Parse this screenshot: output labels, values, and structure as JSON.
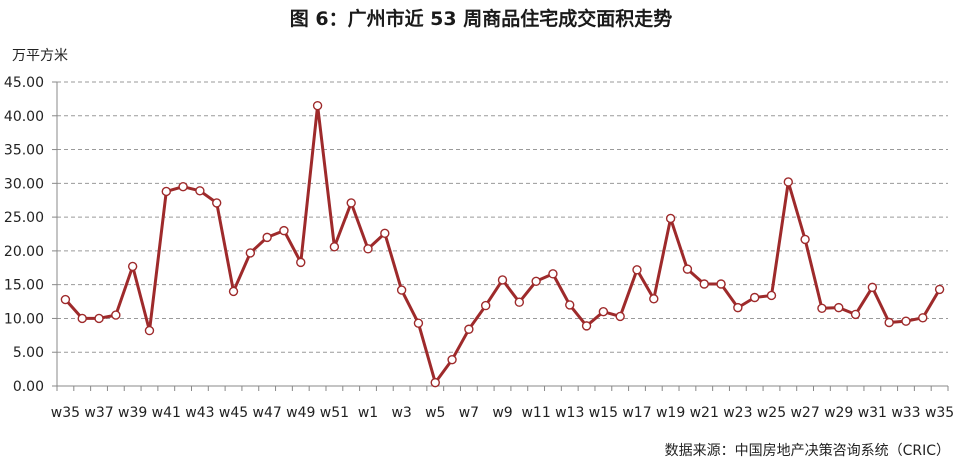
{
  "chart_data": {
    "type": "line",
    "title": "图 6：广州市近 53 周商品住宅成交面积走势",
    "ylabel": "万平方米",
    "xlabel": "",
    "source": "数据来源：中国房地产决策咨询系统（CRIC）",
    "ylim": [
      0,
      45
    ],
    "y_ticks": [
      "0.00",
      "5.00",
      "10.00",
      "15.00",
      "20.00",
      "25.00",
      "30.00",
      "35.00",
      "40.00",
      "45.00"
    ],
    "grid": true,
    "line_color": "#9e2a2b",
    "marker_fill": "#ffffff",
    "x_tick_labels": [
      "w35",
      "w37",
      "w39",
      "w41",
      "w43",
      "w45",
      "w47",
      "w49",
      "w51",
      "w1",
      "w3",
      "w5",
      "w7",
      "w9",
      "w11",
      "w13",
      "w15",
      "w17",
      "w19",
      "w21",
      "w23",
      "w25",
      "w27",
      "w29",
      "w31",
      "w33",
      "w35"
    ],
    "categories": [
      "w35",
      "w36",
      "w37",
      "w38",
      "w39",
      "w40",
      "w41",
      "w42",
      "w43",
      "w44",
      "w45",
      "w46",
      "w47",
      "w48",
      "w49",
      "w50",
      "w51",
      "w52",
      "w1",
      "w2",
      "w3",
      "w4",
      "w5",
      "w6",
      "w7",
      "w8",
      "w9",
      "w10",
      "w11",
      "w12",
      "w13",
      "w14",
      "w15",
      "w16",
      "w17",
      "w18",
      "w19",
      "w20",
      "w21",
      "w22",
      "w23",
      "w24",
      "w25",
      "w26",
      "w27",
      "w28",
      "w29",
      "w30",
      "w31",
      "w32",
      "w33",
      "w34",
      "w35"
    ],
    "values": [
      12.8,
      10.0,
      10.0,
      10.5,
      17.7,
      8.2,
      28.8,
      29.5,
      28.9,
      27.1,
      14.0,
      19.7,
      22.0,
      23.0,
      18.3,
      41.5,
      20.6,
      27.1,
      20.3,
      22.6,
      14.2,
      9.3,
      0.5,
      3.9,
      8.4,
      11.9,
      15.7,
      12.4,
      15.5,
      16.6,
      12.0,
      8.9,
      11.0,
      10.3,
      17.2,
      12.9,
      24.8,
      17.3,
      15.1,
      15.1,
      11.6,
      13.1,
      13.4,
      30.2,
      21.7,
      11.5,
      11.6,
      10.6,
      14.6,
      9.4,
      9.6,
      10.1,
      14.3
    ]
  }
}
